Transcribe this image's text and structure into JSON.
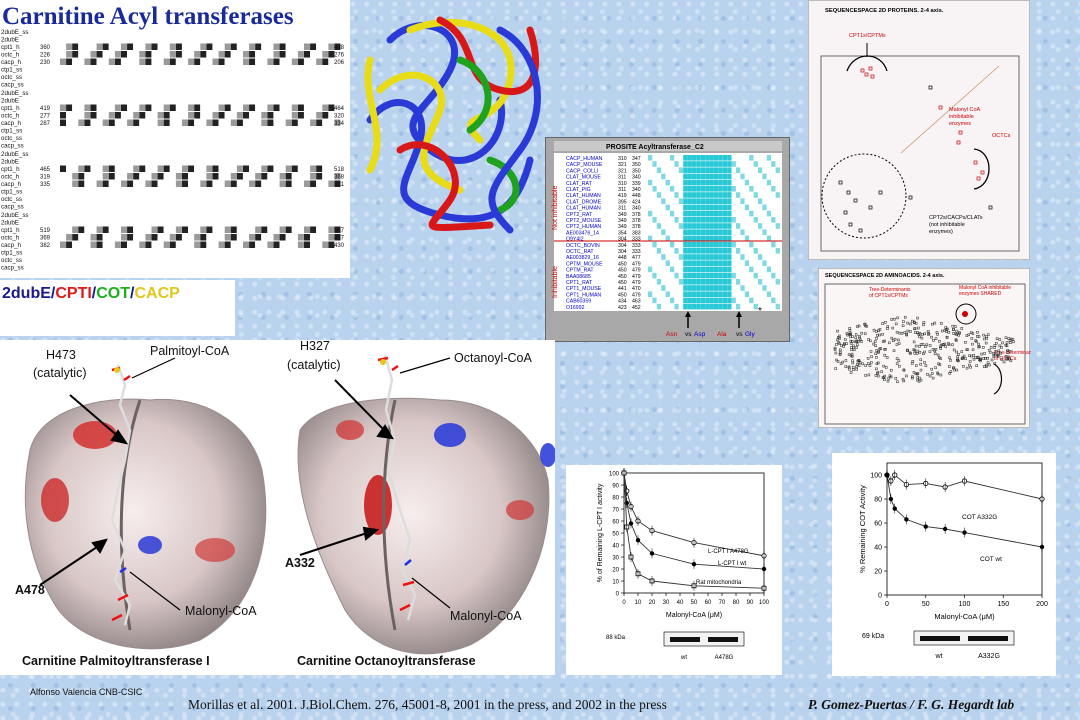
{
  "title": "Carnitine Acyl transferases",
  "alignment": {
    "labels_block1": [
      "2dubE_ss",
      "2dubE",
      "cpt1_h",
      "octc_h",
      "cacp_h",
      "ctp1_ss",
      "octc_ss",
      "cacp_ss"
    ],
    "labels_block2": [
      "2dubE_ss",
      "2dubE",
      "cpt1_h",
      "octc_h",
      "cacp_h",
      "ctp1_ss",
      "octc_ss",
      "cacp_ss"
    ],
    "labels_block3": [
      "2dubE_ss",
      "2dubE",
      "cpt1_h",
      "octc_h",
      "cacp_h",
      "ctp1_ss",
      "octc_ss",
      "cacp_ss"
    ],
    "labels_block4": [
      "2dubE_ss",
      "2dubE",
      "cpt1_h",
      "octc_h",
      "cacp_h",
      "ctp1_ss",
      "octc_ss",
      "cacp_ss"
    ],
    "block1_nums": [
      "360",
      "226",
      "230",
      "",
      "",
      ""
    ],
    "block1_ends": [
      "418",
      "276",
      "206"
    ],
    "block2_nums": [
      "419",
      "277",
      "287"
    ],
    "block2_ends": [
      "464",
      "320",
      "334"
    ],
    "block3_nums": [
      "465",
      "319",
      "335"
    ],
    "block3_ends": [
      "518",
      "368",
      "381"
    ],
    "block4_nums": [
      "519",
      "369",
      "382"
    ],
    "block4_ends": [
      "567",
      "417",
      "430"
    ]
  },
  "legend": {
    "items": [
      {
        "text": "2dubE",
        "color": "#1a1a8c"
      },
      {
        "text": "/",
        "color": "#1a1a8c"
      },
      {
        "text": "CPTI",
        "color": "#e01a1a"
      },
      {
        "text": "/",
        "color": "#1a1a8c"
      },
      {
        "text": "COT",
        "color": "#19b019"
      },
      {
        "text": "/",
        "color": "#1a1a8c"
      },
      {
        "text": "CACP",
        "color": "#e0c81a"
      }
    ]
  },
  "prosite": {
    "header": "PROSITE Acyltransferase_C2",
    "side_top": "Not inhibitable",
    "side_bottom": "Inhibitable",
    "rows": [
      [
        "CACP_HUMAN",
        "310",
        "347"
      ],
      [
        "CACP_MOUSE",
        "321",
        "350"
      ],
      [
        "CACP_COLLI",
        "321",
        "350"
      ],
      [
        "CLAT_MOUSE",
        "311",
        "340"
      ],
      [
        "CLAT_RAT",
        "310",
        "339"
      ],
      [
        "CLAT_PIG",
        "311",
        "340"
      ],
      [
        "CLAT_HUMAN",
        "419",
        "448"
      ],
      [
        "CLAT_DROME",
        "395",
        "424"
      ],
      [
        "CLAT_HUMAN",
        "311",
        "340"
      ],
      [
        "CPT2_RAT",
        "349",
        "378"
      ],
      [
        "CPT2_MOUSE",
        "349",
        "378"
      ],
      [
        "CPT2_HUMAN",
        "349",
        "378"
      ],
      [
        "AE003476_14",
        "354",
        "383"
      ],
      [
        "Q9Y4I2",
        "304",
        "333"
      ],
      [
        "OCTC_BOVIN",
        "304",
        "333"
      ],
      [
        "OCTC_RAT",
        "304",
        "333"
      ],
      [
        "AE003829_16",
        "448",
        "477"
      ],
      [
        "CPTM_MOUSE",
        "450",
        "479"
      ],
      [
        "CPTM_RAT",
        "450",
        "479"
      ],
      [
        "BAA08685",
        "450",
        "479"
      ],
      [
        "CPT1_RAT",
        "450",
        "479"
      ],
      [
        "CPT1_MOUSE",
        "441",
        "470"
      ],
      [
        "CPT1_HUMAN",
        "450",
        "479"
      ],
      [
        "CAB60359",
        "434",
        "463"
      ],
      [
        "O16992",
        "423",
        "452"
      ]
    ],
    "markers": [
      {
        "text": "Asn",
        "vs": "vs",
        "text2": "Asp"
      },
      {
        "text": "Ala",
        "vs": "vs",
        "text2": "Gly"
      }
    ],
    "star": "*"
  },
  "seq2d_proteins": {
    "title": "SEQUENCESPACE 2D PROTEINS. 2-4 axis.",
    "label_cpt1": "CPT1s/CPTMs",
    "label_malonyl": [
      "Malonyl CoA",
      "inhibitable",
      "enzymes"
    ],
    "label_octc": "OCTCs",
    "label_cpt2": [
      "CPT2s/CACPs/CLATs",
      "(not inhibitable",
      "enzymes)"
    ]
  },
  "seq2d_aa": {
    "title": "SEQUENCESPACE 2D AMINOACIDS. 2-4 axis.",
    "label_tree1": [
      "Tree-Determinants",
      "of CPT1s/CPTMs"
    ],
    "label_shared": [
      "Malonyl CoA inhibitable",
      "enzymes SHARED"
    ],
    "label_tree2": [
      "Tree-Determinants",
      "of OCTCs"
    ]
  },
  "surfaces": {
    "left": {
      "h_label": "H473",
      "h_sub": "(catalytic)",
      "ligand1": "Palmitoyl-CoA",
      "mut": "A478",
      "ligand2": "Malonyl-CoA",
      "caption": "Carnitine Palmitoyltransferase I"
    },
    "right": {
      "h_label": "H327",
      "h_sub": "(catalytic)",
      "ligand1": "Octanoyl-CoA",
      "mut": "A332",
      "ligand2": "Malonyl-CoA",
      "caption": "Carnitine Octanoyltransferase"
    }
  },
  "cpt_graph": {
    "ylabel": "% of Remaining L-CPT I activity",
    "xlabel": "Malonyl-CoA (μM)",
    "yticks": [
      "100",
      "90",
      "80",
      "70",
      "60",
      "50",
      "40",
      "30",
      "20",
      "10",
      "0"
    ],
    "xticks": [
      "0",
      "10",
      "20",
      "30",
      "40",
      "50",
      "60",
      "70",
      "80",
      "90",
      "100"
    ],
    "curve_labels": [
      "L-CPT I A478G",
      "L-CPT I wt",
      "Rat mitochondria"
    ],
    "blot_kda": "88 kDa",
    "blot_lanes": [
      "wt",
      "A478G"
    ]
  },
  "cot_graph": {
    "ylabel": "% Remaining COT Activity",
    "xlabel": "Malonyl-CoA (μM)",
    "yticks": [
      "100",
      "80",
      "60",
      "40",
      "20",
      "0"
    ],
    "xticks": [
      "0",
      "50",
      "100",
      "150",
      "200"
    ],
    "curve_labels": [
      "COT A332G",
      "COT wt"
    ],
    "blot_kda": "69 kDa",
    "blot_lanes": [
      "wt",
      "A332G"
    ]
  },
  "chart_data": [
    {
      "type": "line",
      "title": "",
      "xlabel": "Malonyl-CoA (μM)",
      "ylabel": "% of Remaining L-CPT I activity",
      "xlim": [
        0,
        100
      ],
      "ylim": [
        0,
        100
      ],
      "x": [
        0,
        2,
        5,
        10,
        20,
        50,
        100
      ],
      "series": [
        {
          "name": "L-CPT I A478G",
          "values": [
            100,
            85,
            72,
            60,
            52,
            42,
            31
          ]
        },
        {
          "name": "L-CPT I wt",
          "values": [
            100,
            75,
            58,
            44,
            33,
            24,
            20
          ]
        },
        {
          "name": "Rat mitochondria",
          "values": [
            100,
            55,
            30,
            16,
            10,
            6,
            4
          ]
        }
      ]
    },
    {
      "type": "line",
      "title": "",
      "xlabel": "Malonyl-CoA (μM)",
      "ylabel": "% Remaining COT Activity",
      "xlim": [
        0,
        200
      ],
      "ylim": [
        0,
        110
      ],
      "x": [
        0,
        5,
        10,
        25,
        50,
        75,
        100,
        200
      ],
      "series": [
        {
          "name": "COT A332G",
          "values": [
            100,
            95,
            100,
            92,
            93,
            90,
            95,
            80
          ]
        },
        {
          "name": "COT wt",
          "values": [
            100,
            80,
            72,
            63,
            57,
            55,
            52,
            40
          ]
        }
      ]
    }
  ],
  "footer": {
    "author": "Alfonso Valencia  CNB-CSIC",
    "citation": "Morillas et al. 2001. J.Biol.Chem. 276, 45001-8, 2001 in the press, and 2002 in the press",
    "lab": "P. Gomez-Puertas / F. G. Hegardt lab"
  }
}
